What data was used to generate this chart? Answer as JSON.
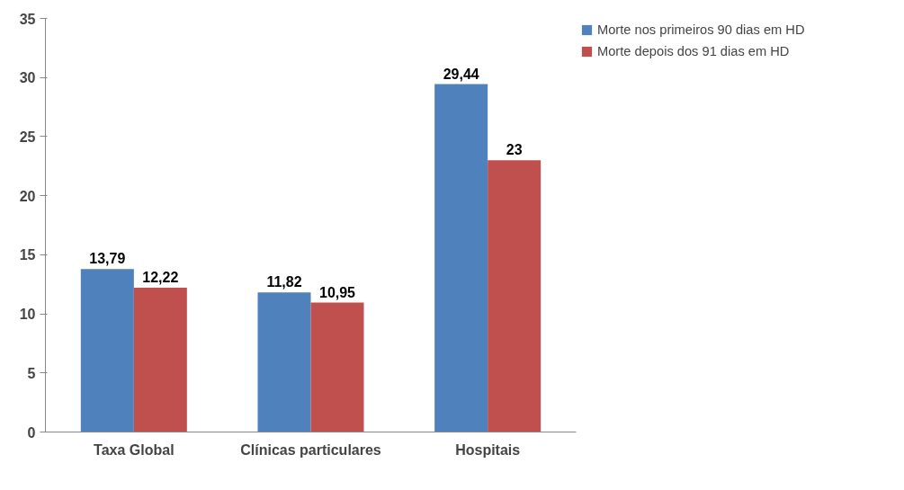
{
  "chart_data": {
    "type": "bar",
    "categories": [
      "Taxa Global",
      "Clínicas particulares",
      "Hospitais"
    ],
    "series": [
      {
        "name": "Morte nos primeiros 90 dias em HD",
        "color": "#4f81bd",
        "values": [
          13.79,
          11.82,
          29.44
        ],
        "value_labels": [
          "13,79",
          "11,82",
          "29,44"
        ]
      },
      {
        "name": "Morte depois dos 91 dias em HD",
        "color": "#c0504d",
        "values": [
          12.22,
          10.95,
          23
        ],
        "value_labels": [
          "12,22",
          "10,95",
          "23"
        ]
      }
    ],
    "ylim": [
      0,
      35
    ],
    "yticks": [
      0,
      5,
      10,
      15,
      20,
      25,
      30,
      35
    ],
    "grid": false,
    "legend": "top right"
  }
}
